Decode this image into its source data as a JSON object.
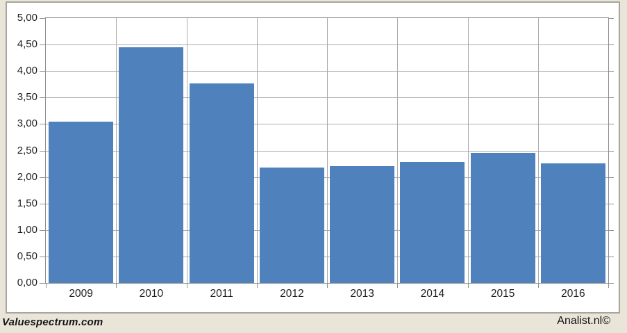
{
  "page": {
    "background_color": "#e9e5d9",
    "card_background_color": "#ffffff",
    "card_border_color": "#a8a59d"
  },
  "footer": {
    "left_watermark": "Valuespectrum.com",
    "right_watermark": "Analist.nl©"
  },
  "chart_data": {
    "type": "bar",
    "title": "",
    "xlabel": "",
    "ylabel": "",
    "categories": [
      "2009",
      "2010",
      "2011",
      "2012",
      "2013",
      "2014",
      "2015",
      "2016"
    ],
    "values": [
      3.05,
      4.45,
      3.77,
      2.18,
      2.2,
      2.28,
      2.45,
      2.26
    ],
    "ylim": [
      0,
      5
    ],
    "y_tick_step": 0.5,
    "y_tick_labels_top_to_bottom": [
      "5,00",
      "4,50",
      "4,00",
      "3,50",
      "3,00",
      "2,50",
      "2,00",
      "1,50",
      "1,00",
      "0,50",
      "0,00"
    ],
    "grid": true,
    "legend_position": "none",
    "bar_color": "#4f81bd",
    "gridline_color": "#ababab",
    "plot_border_color": "#8e8e8e",
    "tick_color": "#8e8e8e",
    "label_color": "#1f1f1f"
  }
}
